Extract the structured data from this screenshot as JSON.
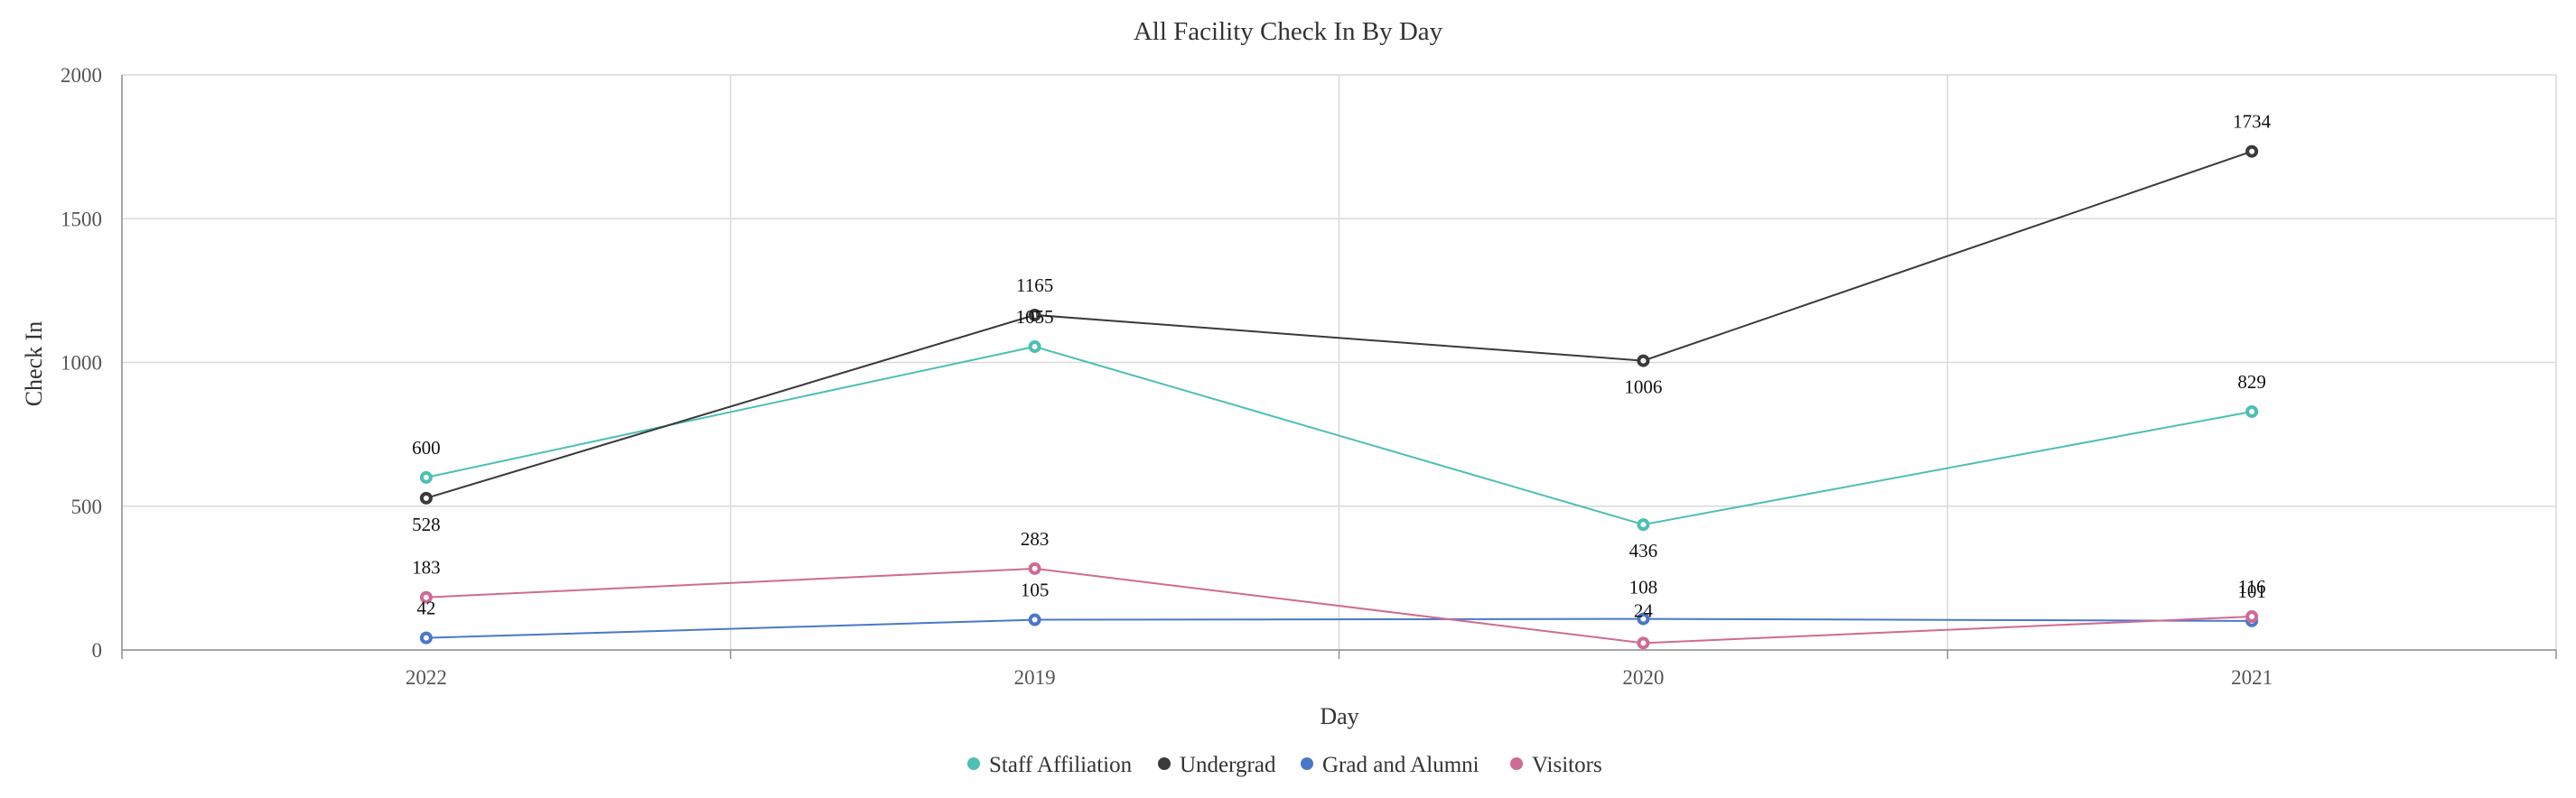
{
  "chart_data": {
    "type": "line",
    "title": "All Facility Check In By Day",
    "xlabel": "Day",
    "ylabel": "Check In",
    "categories": [
      "2022",
      "2019",
      "2020",
      "2021"
    ],
    "ylim": [
      0,
      2000
    ],
    "yticks": [
      0,
      500,
      1000,
      1500,
      2000
    ],
    "grid": true,
    "legend": "bottom-center",
    "series": [
      {
        "name": "Staff Affiliation",
        "color": "#4dbfb5",
        "values": [
          600,
          1055,
          436,
          829
        ]
      },
      {
        "name": "Undergrad",
        "color": "#3a3a3a",
        "values": [
          528,
          1165,
          1006,
          1734
        ]
      },
      {
        "name": "Grad and Alumni",
        "color": "#4a78c8",
        "values": [
          42,
          105,
          108,
          101
        ]
      },
      {
        "name": "Visitors",
        "color": "#cf6b94",
        "values": [
          183,
          283,
          24,
          116
        ]
      }
    ]
  }
}
